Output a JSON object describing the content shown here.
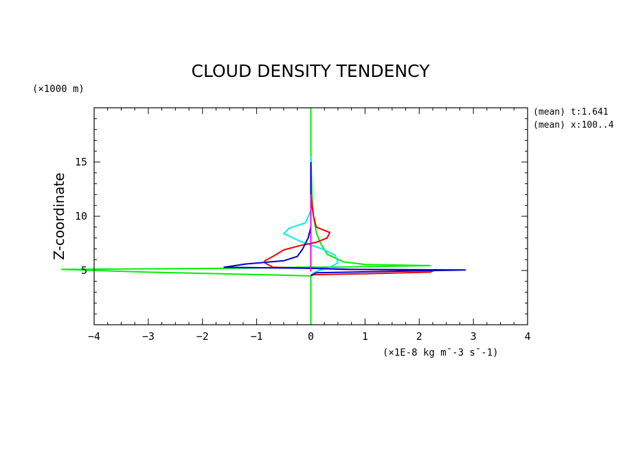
{
  "chart_data": {
    "type": "line",
    "title": "CLOUD DENSITY TENDENCY",
    "ylabel": "Z-coordinate",
    "yunit": "(×1000 m)",
    "xunit": "(×1E-8 kg m¯-3 s¯-1)",
    "annotations": [
      "(mean) t:1.641",
      "(mean) x:100..4"
    ],
    "xlim": [
      -4,
      4
    ],
    "ylim": [
      0,
      20
    ],
    "x_ticks": [
      -4,
      -3,
      -2,
      -1,
      0,
      1,
      2,
      3,
      4
    ],
    "y_ticks": [
      5,
      10,
      15
    ],
    "grid": false,
    "series": [
      {
        "color": "#00ee00",
        "points": [
          [
            0,
            0
          ],
          [
            0,
            4.5
          ],
          [
            -0.8,
            4.6
          ],
          [
            -3.0,
            4.85
          ],
          [
            -4.6,
            5.1
          ],
          [
            -1.5,
            5.2
          ],
          [
            -0.2,
            5.3
          ],
          [
            1.0,
            5.35
          ],
          [
            2.2,
            5.45
          ],
          [
            1.0,
            5.55
          ],
          [
            0.6,
            5.8
          ],
          [
            0.3,
            6.5
          ],
          [
            0.18,
            7.5
          ],
          [
            0.1,
            8.5
          ],
          [
            0.05,
            10
          ],
          [
            0.02,
            12
          ],
          [
            0.01,
            14
          ],
          [
            0.0,
            16
          ],
          [
            0,
            20
          ]
        ]
      },
      {
        "color": "#00eeee",
        "points": [
          [
            0,
            4.5
          ],
          [
            0.05,
            4.8
          ],
          [
            0.15,
            5.0
          ],
          [
            0.35,
            5.3
          ],
          [
            0.5,
            5.7
          ],
          [
            0.45,
            6.4
          ],
          [
            0.2,
            7.0
          ],
          [
            -0.2,
            7.7
          ],
          [
            -0.5,
            8.4
          ],
          [
            -0.4,
            8.9
          ],
          [
            -0.1,
            9.4
          ],
          [
            0,
            10.5
          ],
          [
            0,
            12
          ],
          [
            0,
            14
          ],
          [
            0,
            15.5
          ]
        ]
      },
      {
        "color": "#ee0000",
        "points": [
          [
            0,
            4.6
          ],
          [
            1.0,
            4.7
          ],
          [
            2.2,
            4.85
          ],
          [
            2.3,
            5.05
          ],
          [
            0.6,
            5.1
          ],
          [
            0,
            5.2
          ],
          [
            -0.7,
            5.3
          ],
          [
            -0.85,
            5.7
          ],
          [
            -0.85,
            5.9
          ],
          [
            -0.7,
            6.3
          ],
          [
            -0.5,
            6.9
          ],
          [
            -0.2,
            7.3
          ],
          [
            0.1,
            7.6
          ],
          [
            0.3,
            8.0
          ],
          [
            0.35,
            8.5
          ],
          [
            0.1,
            9.0
          ],
          [
            0.05,
            10
          ],
          [
            0.02,
            11
          ],
          [
            0,
            12
          ]
        ]
      },
      {
        "color": "#0000cc",
        "points": [
          [
            0,
            4.5
          ],
          [
            0.1,
            4.8
          ],
          [
            1.8,
            4.95
          ],
          [
            2.85,
            5.05
          ],
          [
            0.8,
            5.1
          ],
          [
            0,
            5.2
          ],
          [
            -1.6,
            5.3
          ],
          [
            -1.2,
            5.6
          ],
          [
            -0.5,
            5.9
          ],
          [
            -0.25,
            6.3
          ],
          [
            -0.15,
            7.0
          ],
          [
            -0.05,
            8.0
          ],
          [
            0,
            9.0
          ],
          [
            0,
            10
          ],
          [
            0,
            12
          ],
          [
            0,
            15
          ]
        ]
      },
      {
        "color": "#ee00ee",
        "points": [
          [
            0,
            4.9
          ],
          [
            0,
            6
          ],
          [
            0,
            8
          ],
          [
            0,
            10
          ],
          [
            0,
            12
          ]
        ]
      }
    ]
  }
}
